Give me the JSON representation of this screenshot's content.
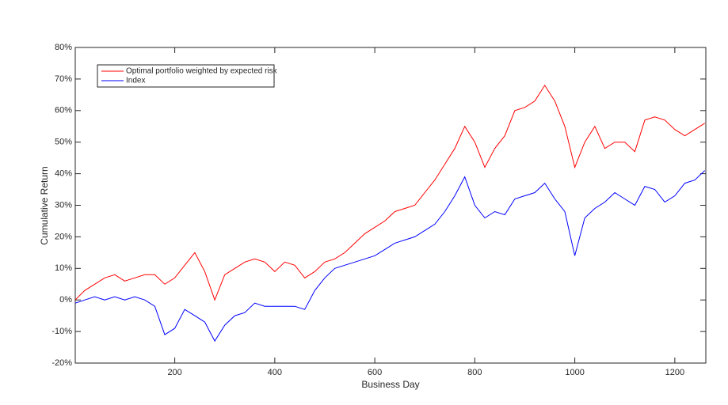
{
  "chart_data": {
    "type": "line",
    "xlabel": "Business Day",
    "ylabel": "Cumulative Return",
    "x": [
      1,
      20,
      40,
      60,
      80,
      100,
      120,
      140,
      160,
      180,
      200,
      220,
      240,
      260,
      280,
      300,
      320,
      340,
      360,
      380,
      400,
      420,
      440,
      460,
      480,
      500,
      520,
      540,
      560,
      580,
      600,
      620,
      640,
      660,
      680,
      700,
      720,
      740,
      760,
      780,
      800,
      820,
      840,
      860,
      880,
      900,
      920,
      940,
      960,
      980,
      1000,
      1020,
      1040,
      1060,
      1080,
      1100,
      1120,
      1140,
      1160,
      1180,
      1200,
      1220,
      1240,
      1260
    ],
    "series": [
      {
        "name": "Optimal portfolio weighted by expected risk",
        "color": "#ff0000",
        "values": [
          0,
          3,
          5,
          7,
          8,
          6,
          7,
          8,
          8,
          5,
          7,
          11,
          15,
          9,
          0,
          8,
          10,
          12,
          13,
          12,
          9,
          12,
          11,
          7,
          9,
          12,
          13,
          15,
          18,
          21,
          23,
          25,
          28,
          29,
          30,
          34,
          38,
          43,
          48,
          55,
          50,
          42,
          48,
          52,
          60,
          61,
          63,
          68,
          63,
          55,
          42,
          50,
          55,
          48,
          50,
          50,
          47,
          57,
          58,
          57,
          54,
          52,
          54,
          56
        ]
      },
      {
        "name": "Index",
        "color": "#0000ff",
        "values": [
          -1,
          0,
          1,
          0,
          1,
          0,
          1,
          0,
          -2,
          -11,
          -9,
          -3,
          -5,
          -7,
          -13,
          -8,
          -5,
          -4,
          -1,
          -2,
          -2,
          -2,
          -2,
          -3,
          3,
          7,
          10,
          11,
          12,
          13,
          14,
          16,
          18,
          19,
          20,
          22,
          24,
          28,
          33,
          39,
          30,
          26,
          28,
          27,
          32,
          33,
          34,
          37,
          32,
          28,
          14,
          26,
          29,
          31,
          34,
          32,
          30,
          36,
          35,
          31,
          33,
          37,
          38,
          41
        ]
      }
    ],
    "xlim": [
      1,
      1262
    ],
    "xticks": [
      200,
      400,
      600,
      800,
      1000,
      1200
    ],
    "ylim": [
      -20,
      80
    ],
    "yticks": [
      {
        "value": -20,
        "label": "-20%"
      },
      {
        "value": -10,
        "label": "-10%"
      },
      {
        "value": 0,
        "label": "0%"
      },
      {
        "value": 10,
        "label": "10%"
      },
      {
        "value": 20,
        "label": "20%"
      },
      {
        "value": 30,
        "label": "30%"
      },
      {
        "value": 40,
        "label": "40%"
      },
      {
        "value": 50,
        "label": "50%"
      },
      {
        "value": 60,
        "label": "60%"
      },
      {
        "value": 70,
        "label": "70%"
      },
      {
        "value": 80,
        "label": "80%"
      }
    ],
    "grid": false,
    "legend": "upper left"
  }
}
